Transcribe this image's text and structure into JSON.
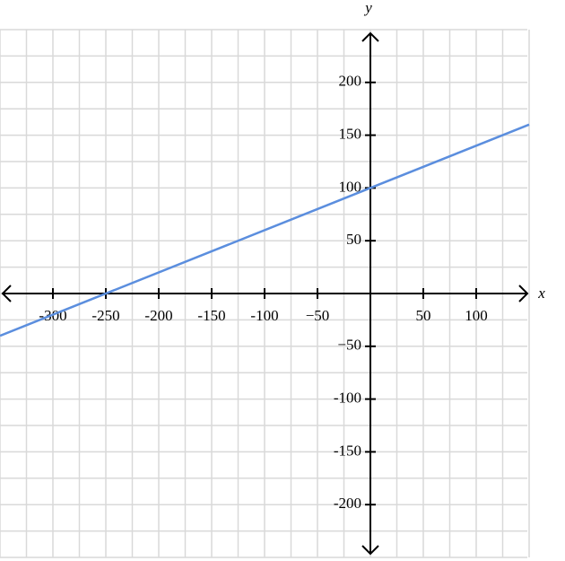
{
  "chart_data": {
    "type": "line",
    "x_label": "x",
    "y_label": "y",
    "x": [
      -350,
      150
    ],
    "values": [
      -40,
      160
    ],
    "color": "#5b8ede",
    "xlim": [
      -350,
      150
    ],
    "ylim": [
      -250,
      250
    ],
    "xticks": [
      -300,
      -250,
      -200,
      -150,
      -100,
      {
        "value": -50,
        "label": "−50"
      },
      50,
      100
    ],
    "yticks": [
      200,
      150,
      100,
      50,
      {
        "value": -50,
        "label": "−50"
      },
      -100,
      -150,
      -200
    ],
    "grid": true,
    "grid_step": 25
  }
}
